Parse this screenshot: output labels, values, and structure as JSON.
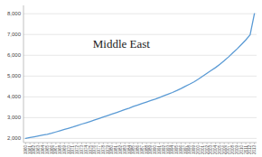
{
  "chart_data": {
    "type": "line",
    "title": "Middle East",
    "x": [
      1960,
      1961,
      1962,
      1963,
      1964,
      1965,
      1966,
      1967,
      1968,
      1969,
      1970,
      1971,
      1972,
      1973,
      1974,
      1975,
      1976,
      1977,
      1978,
      1979,
      1980,
      1981,
      1982,
      1983,
      1984,
      1985,
      1986,
      1987,
      1988,
      1989,
      1990,
      1991,
      1992,
      1993,
      1994,
      1995,
      1996,
      1997,
      1998,
      1999,
      2000,
      2001,
      2002,
      2003,
      2004,
      2005,
      2006,
      2007,
      2008,
      2009,
      2010,
      2011,
      2012,
      2013
    ],
    "values": [
      2000,
      2040,
      2080,
      2120,
      2160,
      2200,
      2250,
      2310,
      2370,
      2430,
      2490,
      2550,
      2620,
      2690,
      2750,
      2820,
      2890,
      2960,
      3030,
      3100,
      3170,
      3240,
      3310,
      3390,
      3460,
      3540,
      3610,
      3680,
      3750,
      3820,
      3890,
      3970,
      4050,
      4130,
      4210,
      4300,
      4400,
      4510,
      4610,
      4720,
      4850,
      4990,
      5130,
      5270,
      5410,
      5570,
      5740,
      5920,
      6120,
      6310,
      6520,
      6740,
      6980,
      8000
    ],
    "color": "#5b9bd5",
    "xlim": [
      1959.5,
      2013.5
    ],
    "xticks": [
      1960,
      1961,
      1962,
      1963,
      1964,
      1965,
      1966,
      1967,
      1968,
      1969,
      1970,
      1971,
      1972,
      1973,
      1974,
      1975,
      1976,
      1977,
      1978,
      1979,
      1980,
      1981,
      1982,
      1983,
      1984,
      1985,
      1986,
      1987,
      1988,
      1989,
      1990,
      1991,
      1992,
      1993,
      1994,
      1995,
      1996,
      1997,
      1998,
      1999,
      2000,
      2001,
      2002,
      2003,
      2004,
      2005,
      2006,
      2007,
      2008,
      2009,
      2010,
      2011,
      2012,
      2013
    ],
    "ylim": [
      1800,
      8400
    ],
    "yticks": [
      {
        "value": 2000,
        "label": "2,000"
      },
      {
        "value": 3000,
        "label": "3,000"
      },
      {
        "value": 4000,
        "label": "4,000"
      },
      {
        "value": 5000,
        "label": "5,000"
      },
      {
        "value": 6000,
        "label": "6,000"
      },
      {
        "value": 7000,
        "label": "7,000"
      },
      {
        "value": 8000,
        "label": "8,000"
      }
    ],
    "grid": true
  }
}
